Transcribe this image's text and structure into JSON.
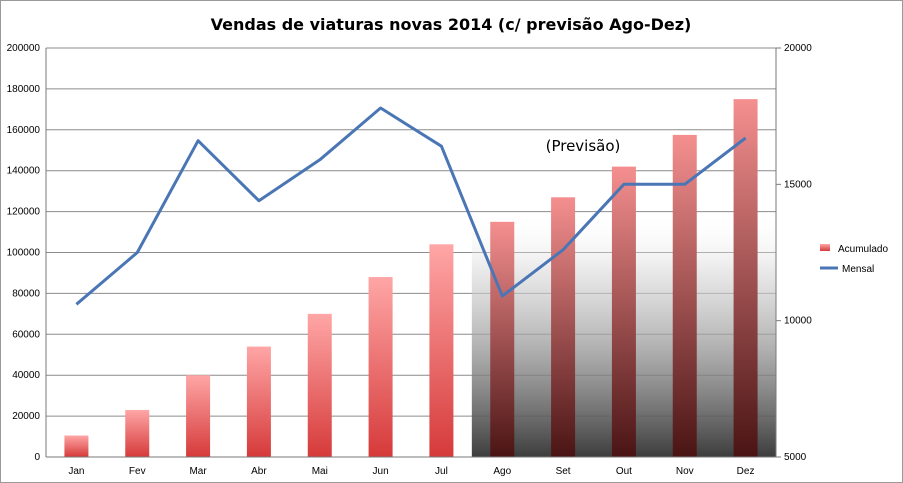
{
  "chart_data": {
    "type": "bar",
    "title": "Vendas de viaturas novas 2014 (c/ previsão Ago-Dez)",
    "categories": [
      "Jan",
      "Fev",
      "Mar",
      "Abr",
      "Mai",
      "Jun",
      "Jul",
      "Ago",
      "Set",
      "Out",
      "Nov",
      "Dez"
    ],
    "series": [
      {
        "name": "Acumulado",
        "type": "bar",
        "axis": "left",
        "color": "#f08080",
        "values": [
          10500,
          23000,
          40000,
          54000,
          70000,
          88000,
          104000,
          115000,
          127000,
          142000,
          157500,
          175000
        ]
      },
      {
        "name": "Mensal",
        "type": "line",
        "axis": "right",
        "color": "#4a76b5",
        "values": [
          10600,
          12500,
          16600,
          14400,
          15900,
          17800,
          16400,
          10900,
          12600,
          15000,
          15000,
          16700
        ]
      }
    ],
    "y_left": {
      "min": 0,
      "max": 200000,
      "ticks": [
        "0",
        "20000",
        "40000",
        "60000",
        "80000",
        "100000",
        "120000",
        "140000",
        "160000",
        "180000",
        "200000"
      ]
    },
    "y_right": {
      "min": 5000,
      "max": 20000,
      "ticks": [
        "5000",
        "10000",
        "15000",
        "20000"
      ]
    },
    "forecast_region": {
      "from": "Ago",
      "to": "Dez",
      "label": "(Previsão)"
    },
    "grid": true,
    "legend_position": "right"
  }
}
